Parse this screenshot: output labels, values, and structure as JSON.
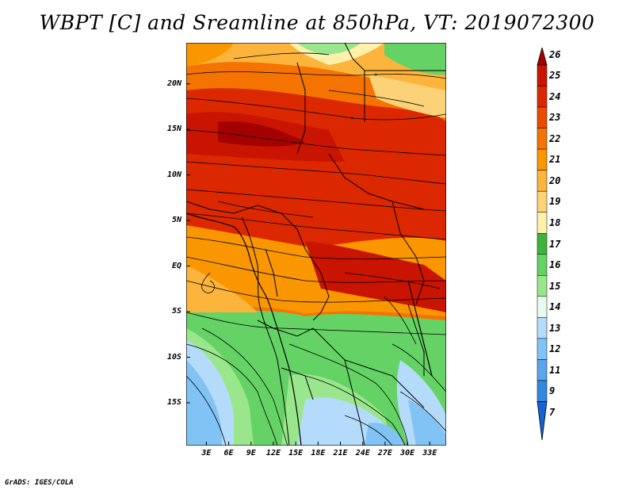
{
  "title": "WBPT [C] and Sreamline at 850hPa, VT: 2019072300",
  "footer": "GrADS: IGES/COLA",
  "map": {
    "lat_ticks": [
      {
        "value": 20,
        "label": "20N"
      },
      {
        "value": 15,
        "label": "15N"
      },
      {
        "value": 10,
        "label": "10N"
      },
      {
        "value": 5,
        "label": "5N"
      },
      {
        "value": 0,
        "label": "EQ"
      },
      {
        "value": -5,
        "label": "5S"
      },
      {
        "value": -10,
        "label": "10S"
      },
      {
        "value": -15,
        "label": "15S"
      }
    ],
    "lon_ticks": [
      {
        "value": 3,
        "label": "3E"
      },
      {
        "value": 6,
        "label": "6E"
      },
      {
        "value": 9,
        "label": "9E"
      },
      {
        "value": 12,
        "label": "12E"
      },
      {
        "value": 15,
        "label": "15E"
      },
      {
        "value": 18,
        "label": "18E"
      },
      {
        "value": 21,
        "label": "21E"
      },
      {
        "value": 24,
        "label": "24E"
      },
      {
        "value": 27,
        "label": "27E"
      },
      {
        "value": 30,
        "label": "30E"
      },
      {
        "value": 33,
        "label": "33E"
      }
    ],
    "lat_range": [
      -19.7,
      24.5
    ],
    "lon_range": [
      0.3,
      35.2
    ]
  },
  "colorbar": {
    "levels": [
      "26",
      "25",
      "24",
      "23",
      "22",
      "21",
      "20",
      "19",
      "18",
      "17",
      "16",
      "15",
      "14",
      "13",
      "12",
      "11",
      "9",
      "7"
    ],
    "colors": [
      "#a50000",
      "#c81400",
      "#dc2800",
      "#eb4b00",
      "#f57300",
      "#fa9600",
      "#fcb43c",
      "#fcd278",
      "#fff0aa",
      "#3cb43c",
      "#64d264",
      "#9ae68c",
      "#e6faf0",
      "#b4dcfa",
      "#82c3f5",
      "#5aa5eb",
      "#3287e1",
      "#1464d2"
    ]
  }
}
